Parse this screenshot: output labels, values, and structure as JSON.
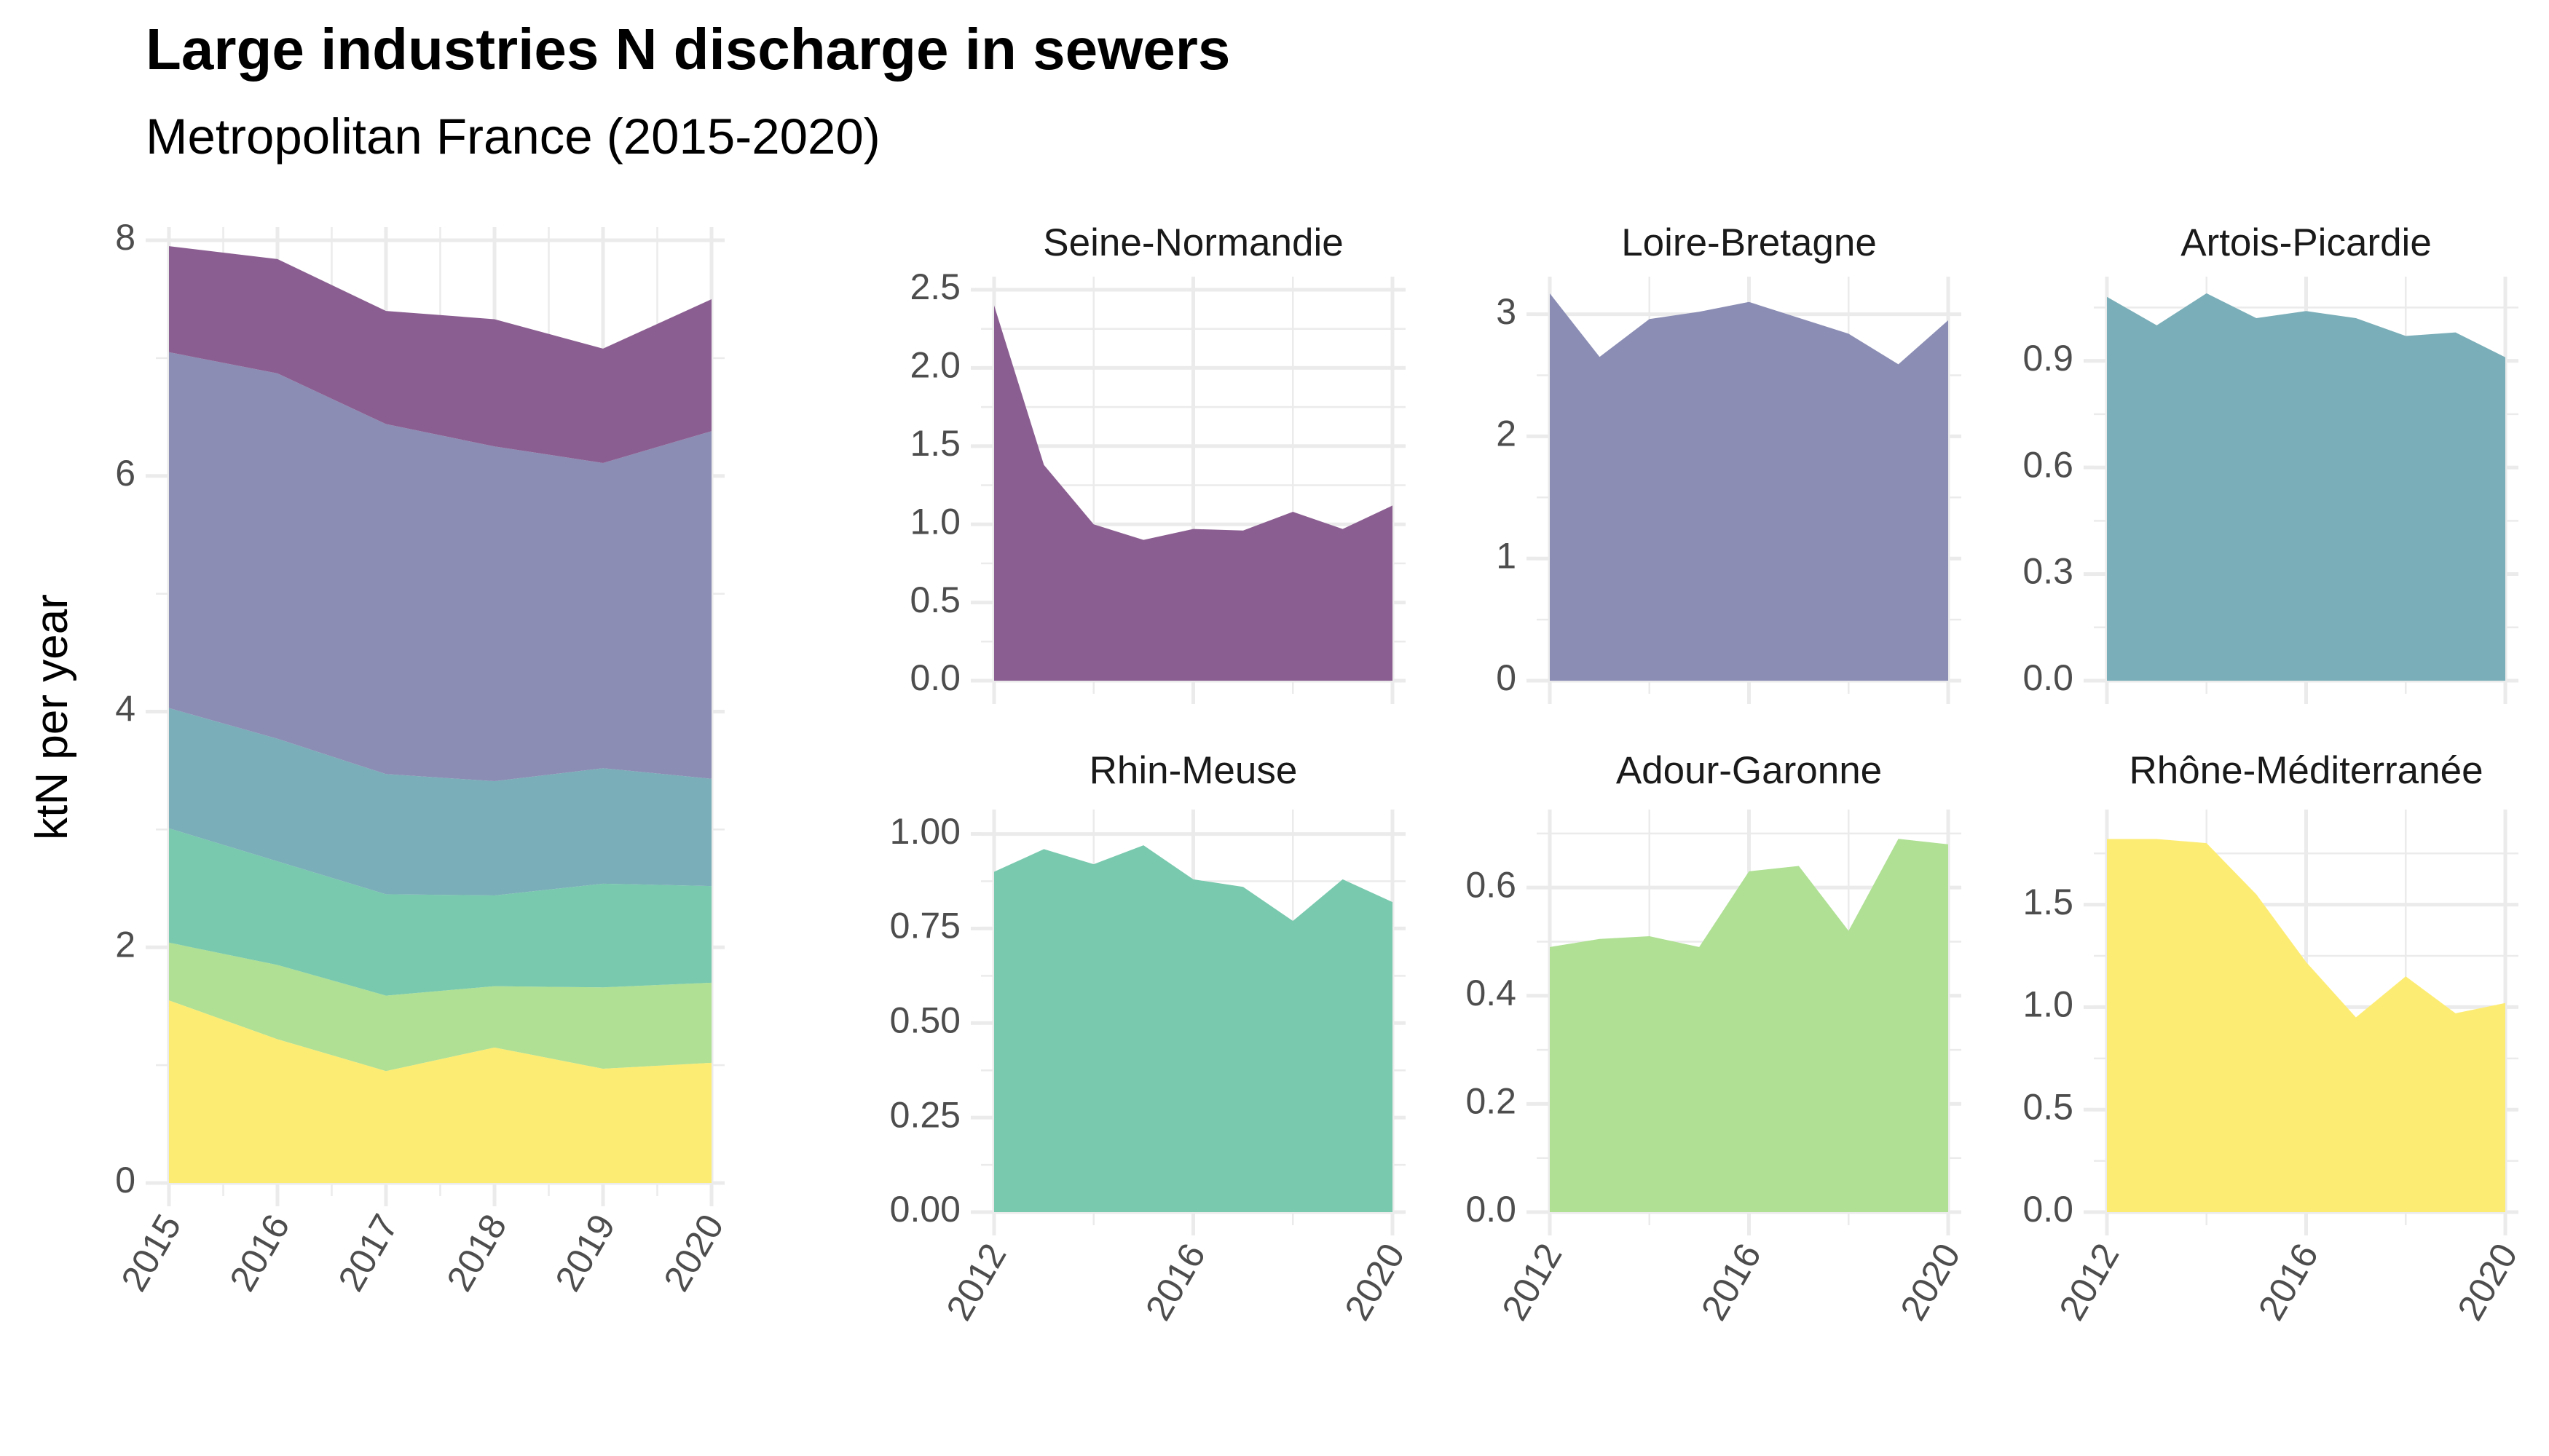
{
  "title": "Large industries N discharge in sewers",
  "subtitle": "Metropolitan France (2015-2020)",
  "ylabel": "ktN per year",
  "colors": {
    "Seine-Normandie": "#8b5e91",
    "Loire-Bretagne": "#8b8db4",
    "Artois-Picardie": "#7aaeb8",
    "Rhin-Meuse": "#79c9ae",
    "Adour-Garonne": "#afe094",
    "Rhône-Méditerranée": "#fdec74"
  },
  "chart_data": [
    {
      "type": "area",
      "stacked": true,
      "x": [
        2015,
        2016,
        2017,
        2018,
        2019,
        2020
      ],
      "xticks": [
        2015,
        2016,
        2017,
        2018,
        2019,
        2020
      ],
      "ylim": [
        0,
        8
      ],
      "yticks": [
        0,
        2,
        4,
        6,
        8
      ],
      "ylabel": "ktN per year",
      "series": [
        {
          "name": "Rhône-Méditerranée",
          "values": [
            1.55,
            1.22,
            0.95,
            1.15,
            0.97,
            1.02
          ]
        },
        {
          "name": "Adour-Garonne",
          "values": [
            0.49,
            0.63,
            0.64,
            0.52,
            0.69,
            0.68
          ]
        },
        {
          "name": "Rhin-Meuse",
          "values": [
            0.97,
            0.88,
            0.86,
            0.77,
            0.88,
            0.82
          ]
        },
        {
          "name": "Artois-Picardie",
          "values": [
            1.02,
            1.04,
            1.02,
            0.97,
            0.98,
            0.91
          ]
        },
        {
          "name": "Loire-Bretagne",
          "values": [
            3.02,
            3.1,
            2.97,
            2.84,
            2.59,
            2.95
          ]
        },
        {
          "name": "Seine-Normandie",
          "values": [
            0.9,
            0.97,
            0.96,
            1.08,
            0.97,
            1.12
          ]
        }
      ]
    },
    {
      "type": "area",
      "name": "Seine-Normandie",
      "x": [
        2012,
        2013,
        2014,
        2015,
        2016,
        2017,
        2018,
        2019,
        2020
      ],
      "values": [
        2.4,
        1.38,
        1.0,
        0.9,
        0.97,
        0.96,
        1.08,
        0.97,
        1.12
      ],
      "ylim": [
        0,
        2.5
      ],
      "yticks": [
        "0.0",
        "0.5",
        "1.0",
        "1.5",
        "2.0",
        "2.5"
      ],
      "xticks": [
        "2012",
        "2016",
        "2020"
      ]
    },
    {
      "type": "area",
      "name": "Loire-Bretagne",
      "x": [
        2012,
        2013,
        2014,
        2015,
        2016,
        2017,
        2018,
        2019,
        2020
      ],
      "values": [
        3.17,
        2.65,
        2.96,
        3.02,
        3.1,
        2.97,
        2.84,
        2.59,
        2.95
      ],
      "ylim": [
        0,
        3.2
      ],
      "yticks": [
        "0",
        "1",
        "2",
        "3"
      ],
      "xticks": [
        "2012",
        "2016",
        "2020"
      ]
    },
    {
      "type": "area",
      "name": "Artois-Picardie",
      "x": [
        2012,
        2013,
        2014,
        2015,
        2016,
        2017,
        2018,
        2019,
        2020
      ],
      "values": [
        1.08,
        1.0,
        1.09,
        1.02,
        1.04,
        1.02,
        0.97,
        0.98,
        0.91
      ],
      "ylim": [
        0,
        1.1
      ],
      "yticks": [
        "0.0",
        "0.3",
        "0.6",
        "0.9"
      ],
      "xticks": [
        "2012",
        "2016",
        "2020"
      ]
    },
    {
      "type": "area",
      "name": "Rhin-Meuse",
      "x": [
        2012,
        2013,
        2014,
        2015,
        2016,
        2017,
        2018,
        2019,
        2020
      ],
      "values": [
        0.9,
        0.96,
        0.92,
        0.97,
        0.88,
        0.86,
        0.77,
        0.88,
        0.82
      ],
      "ylim": [
        0,
        1.03
      ],
      "yticks": [
        "0.00",
        "0.25",
        "0.50",
        "0.75",
        "1.00"
      ],
      "xticks": [
        "2012",
        "2016",
        "2020"
      ]
    },
    {
      "type": "area",
      "name": "Adour-Garonne",
      "x": [
        2012,
        2013,
        2014,
        2015,
        2016,
        2017,
        2018,
        2019,
        2020
      ],
      "values": [
        0.49,
        0.505,
        0.51,
        0.49,
        0.63,
        0.64,
        0.52,
        0.69,
        0.68
      ],
      "ylim": [
        0,
        0.72
      ],
      "yticks": [
        "0.0",
        "0.2",
        "0.4",
        "0.6"
      ],
      "xticks": [
        "2012",
        "2016",
        "2020"
      ]
    },
    {
      "type": "area",
      "name": "Rhône-Méditerranée",
      "x": [
        2012,
        2013,
        2014,
        2015,
        2016,
        2017,
        2018,
        2019,
        2020
      ],
      "values": [
        1.82,
        1.82,
        1.8,
        1.55,
        1.22,
        0.95,
        1.15,
        0.97,
        1.02
      ],
      "ylim": [
        0,
        1.9
      ],
      "yticks": [
        "0.0",
        "0.5",
        "1.0",
        "1.5"
      ],
      "xticks": [
        "2012",
        "2016",
        "2020"
      ]
    }
  ]
}
